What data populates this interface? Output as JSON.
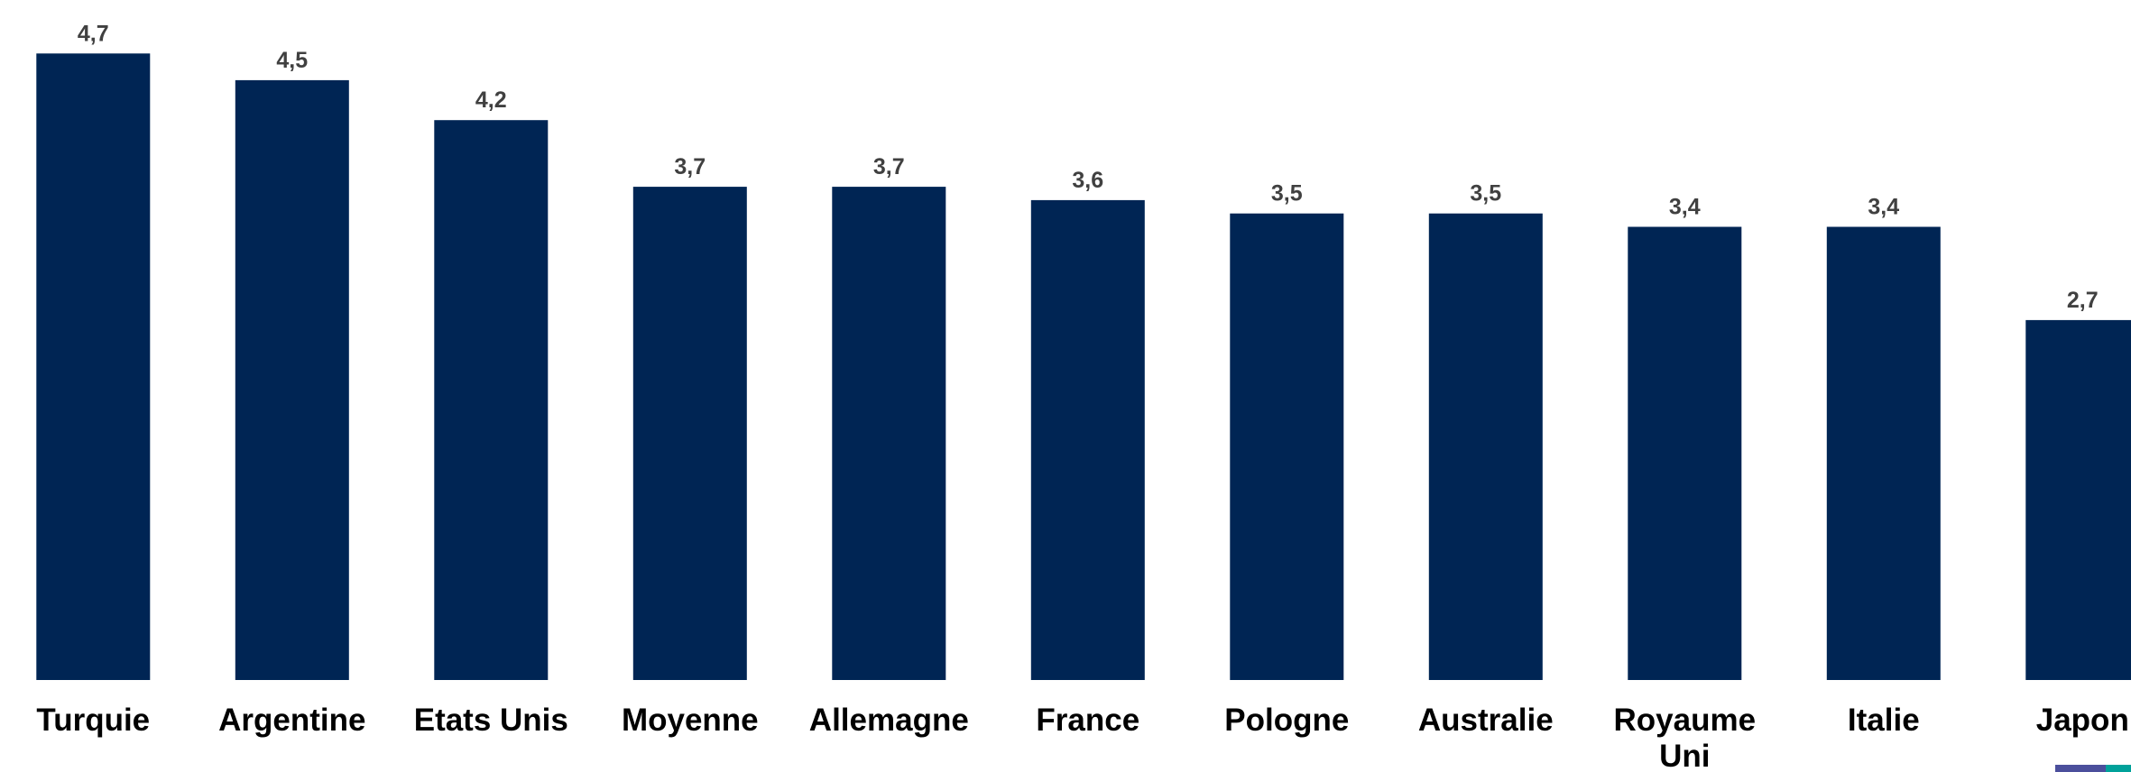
{
  "chart_data": {
    "type": "bar",
    "categories": [
      "Turquie",
      "Argentine",
      "Etats Unis",
      "Moyenne",
      "Allemagne",
      "France",
      "Pologne",
      "Australie",
      "Royaume Uni",
      "Italie",
      "Japon"
    ],
    "category_lines": [
      [
        "Turquie"
      ],
      [
        "Argentine"
      ],
      [
        "Etats Unis"
      ],
      [
        "Moyenne"
      ],
      [
        "Allemagne"
      ],
      [
        "France"
      ],
      [
        "Pologne"
      ],
      [
        "Australie"
      ],
      [
        "Royaume",
        "Uni"
      ],
      [
        "Italie"
      ],
      [
        "Japon"
      ]
    ],
    "values": [
      4.7,
      4.5,
      4.2,
      3.7,
      3.7,
      3.6,
      3.5,
      3.5,
      3.4,
      3.4,
      2.7
    ],
    "value_labels": [
      "4,7",
      "4,5",
      "4,2",
      "3,7",
      "3,7",
      "3,6",
      "3,5",
      "3,5",
      "3,4",
      "3,4",
      "2,7"
    ],
    "ylim": [
      0,
      5.0
    ],
    "grid": false,
    "bar_color": "#002554",
    "label_color": "#404040"
  },
  "accents": {
    "left_color": "#4b4f9c",
    "right_color": "#00a19a"
  }
}
